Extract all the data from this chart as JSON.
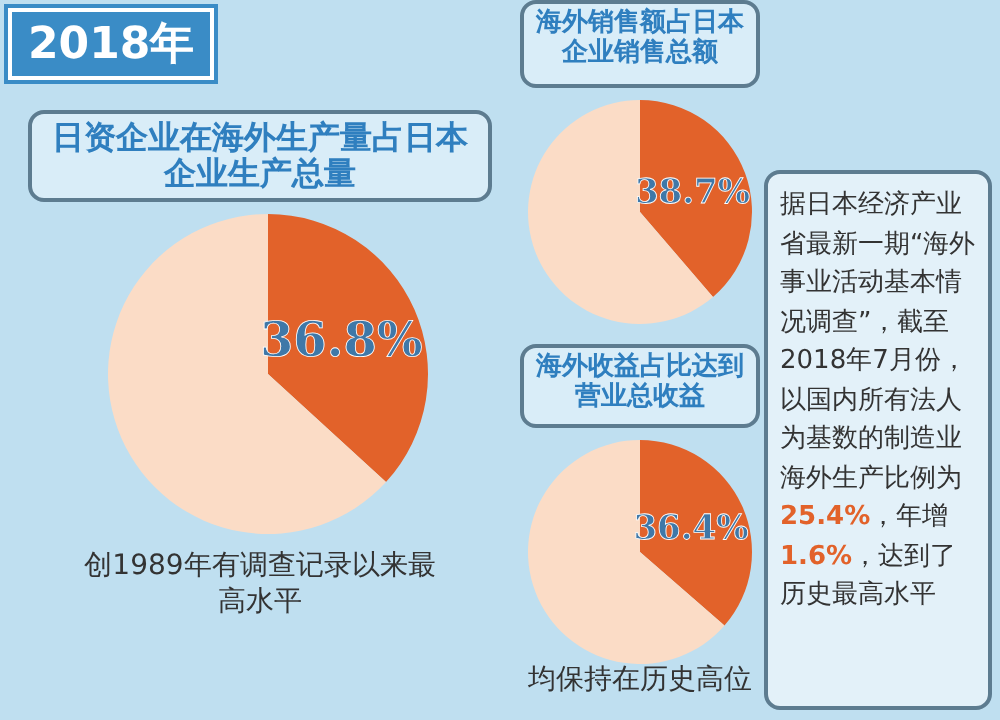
{
  "chart_data": [
    {
      "type": "pie",
      "title": "2018年",
      "subtitle": "日资企业在海外生产量占日本企业生产总量",
      "categories": [
        null,
        null
      ],
      "values": [
        36.8,
        63.2
      ],
      "colors": [
        "#e2622a",
        "#fbdcc6"
      ],
      "value_labels": [
        "36.8%",
        null
      ],
      "annotations": [
        "创1989年有调查记录以来最高水平"
      ]
    },
    {
      "type": "pie",
      "title": "海外销售额占日本企业销售总额",
      "categories": [
        null,
        null
      ],
      "values": [
        38.7,
        61.3
      ],
      "colors": [
        "#e2622a",
        "#fbdcc6"
      ],
      "value_labels": [
        "38.7%",
        null
      ]
    },
    {
      "type": "pie",
      "title": "海外收益占比达到营业总收益",
      "categories": [
        null,
        null
      ],
      "values": [
        36.4,
        63.6
      ],
      "colors": [
        "#e2622a",
        "#fbdcc6"
      ],
      "value_labels": [
        "36.4%",
        null
      ],
      "annotations": [
        "均保持在历史高位"
      ]
    },
    {
      "type": "other",
      "annotations": [
        "据日本经济产业省最新一期“海外事业活动基本情况调查”，截至2018年7月份，以国内所有法人为基数的制造业海外生产比例为25.4%，年增1.6%，达到了历史最高水平"
      ]
    }
  ]
}
